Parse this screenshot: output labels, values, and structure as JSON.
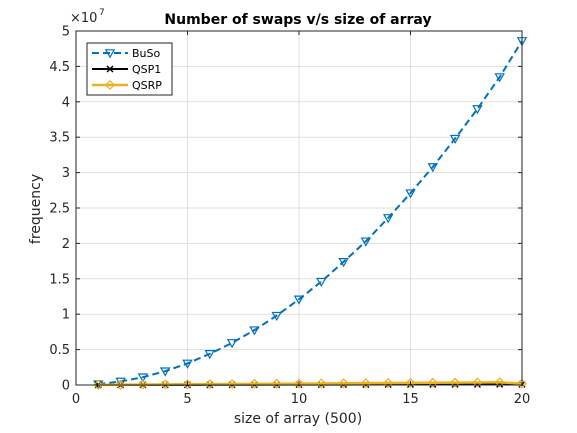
{
  "chart_data": {
    "type": "line",
    "title": "Number of swaps v/s size of array",
    "xlabel": "size of array (500)",
    "ylabel": "frequency",
    "xlim": [
      0,
      20
    ],
    "ylim": [
      0,
      50000000
    ],
    "xticks": [
      "0",
      "5",
      "10",
      "15",
      "20"
    ],
    "yticks": [
      "0",
      "0.5",
      "1",
      "1.5",
      "2",
      "2.5",
      "3",
      "3.5",
      "4",
      "4.5",
      "5"
    ],
    "y_multiplier": "×10",
    "y_exponent": "7",
    "grid": true,
    "legend_position": "top-left",
    "x": [
      1,
      2,
      3,
      4,
      5,
      6,
      7,
      8,
      9,
      10,
      11,
      12,
      13,
      14,
      15,
      16,
      17,
      18,
      19,
      20
    ],
    "series": [
      {
        "name": "BuSo",
        "color": "#0072BD",
        "line_style": "dashed",
        "marker": "triangle-down",
        "values": [
          125000,
          500000,
          1100000,
          1950000,
          3050000,
          4400000,
          5950000,
          7750000,
          9800000,
          12100000,
          14600000,
          17400000,
          20300000,
          23600000,
          27100000,
          30800000,
          34800000,
          39000000,
          43500000,
          48600000
        ]
      },
      {
        "name": "QSP1",
        "color": "#000000",
        "line_style": "solid",
        "marker": "x",
        "values": [
          5000,
          10000,
          15000,
          20000,
          25000,
          30000,
          35000,
          40000,
          45000,
          50000,
          55000,
          60000,
          65000,
          70000,
          75000,
          80000,
          85000,
          90000,
          95000,
          100000
        ]
      },
      {
        "name": "QSRP",
        "color": "#EDB120",
        "line_style": "solid",
        "marker": "diamond",
        "values": [
          20000,
          40000,
          60000,
          80000,
          100000,
          120000,
          140000,
          160000,
          180000,
          200000,
          220000,
          240000,
          260000,
          280000,
          300000,
          320000,
          340000,
          360000,
          380000,
          200000
        ]
      }
    ]
  }
}
